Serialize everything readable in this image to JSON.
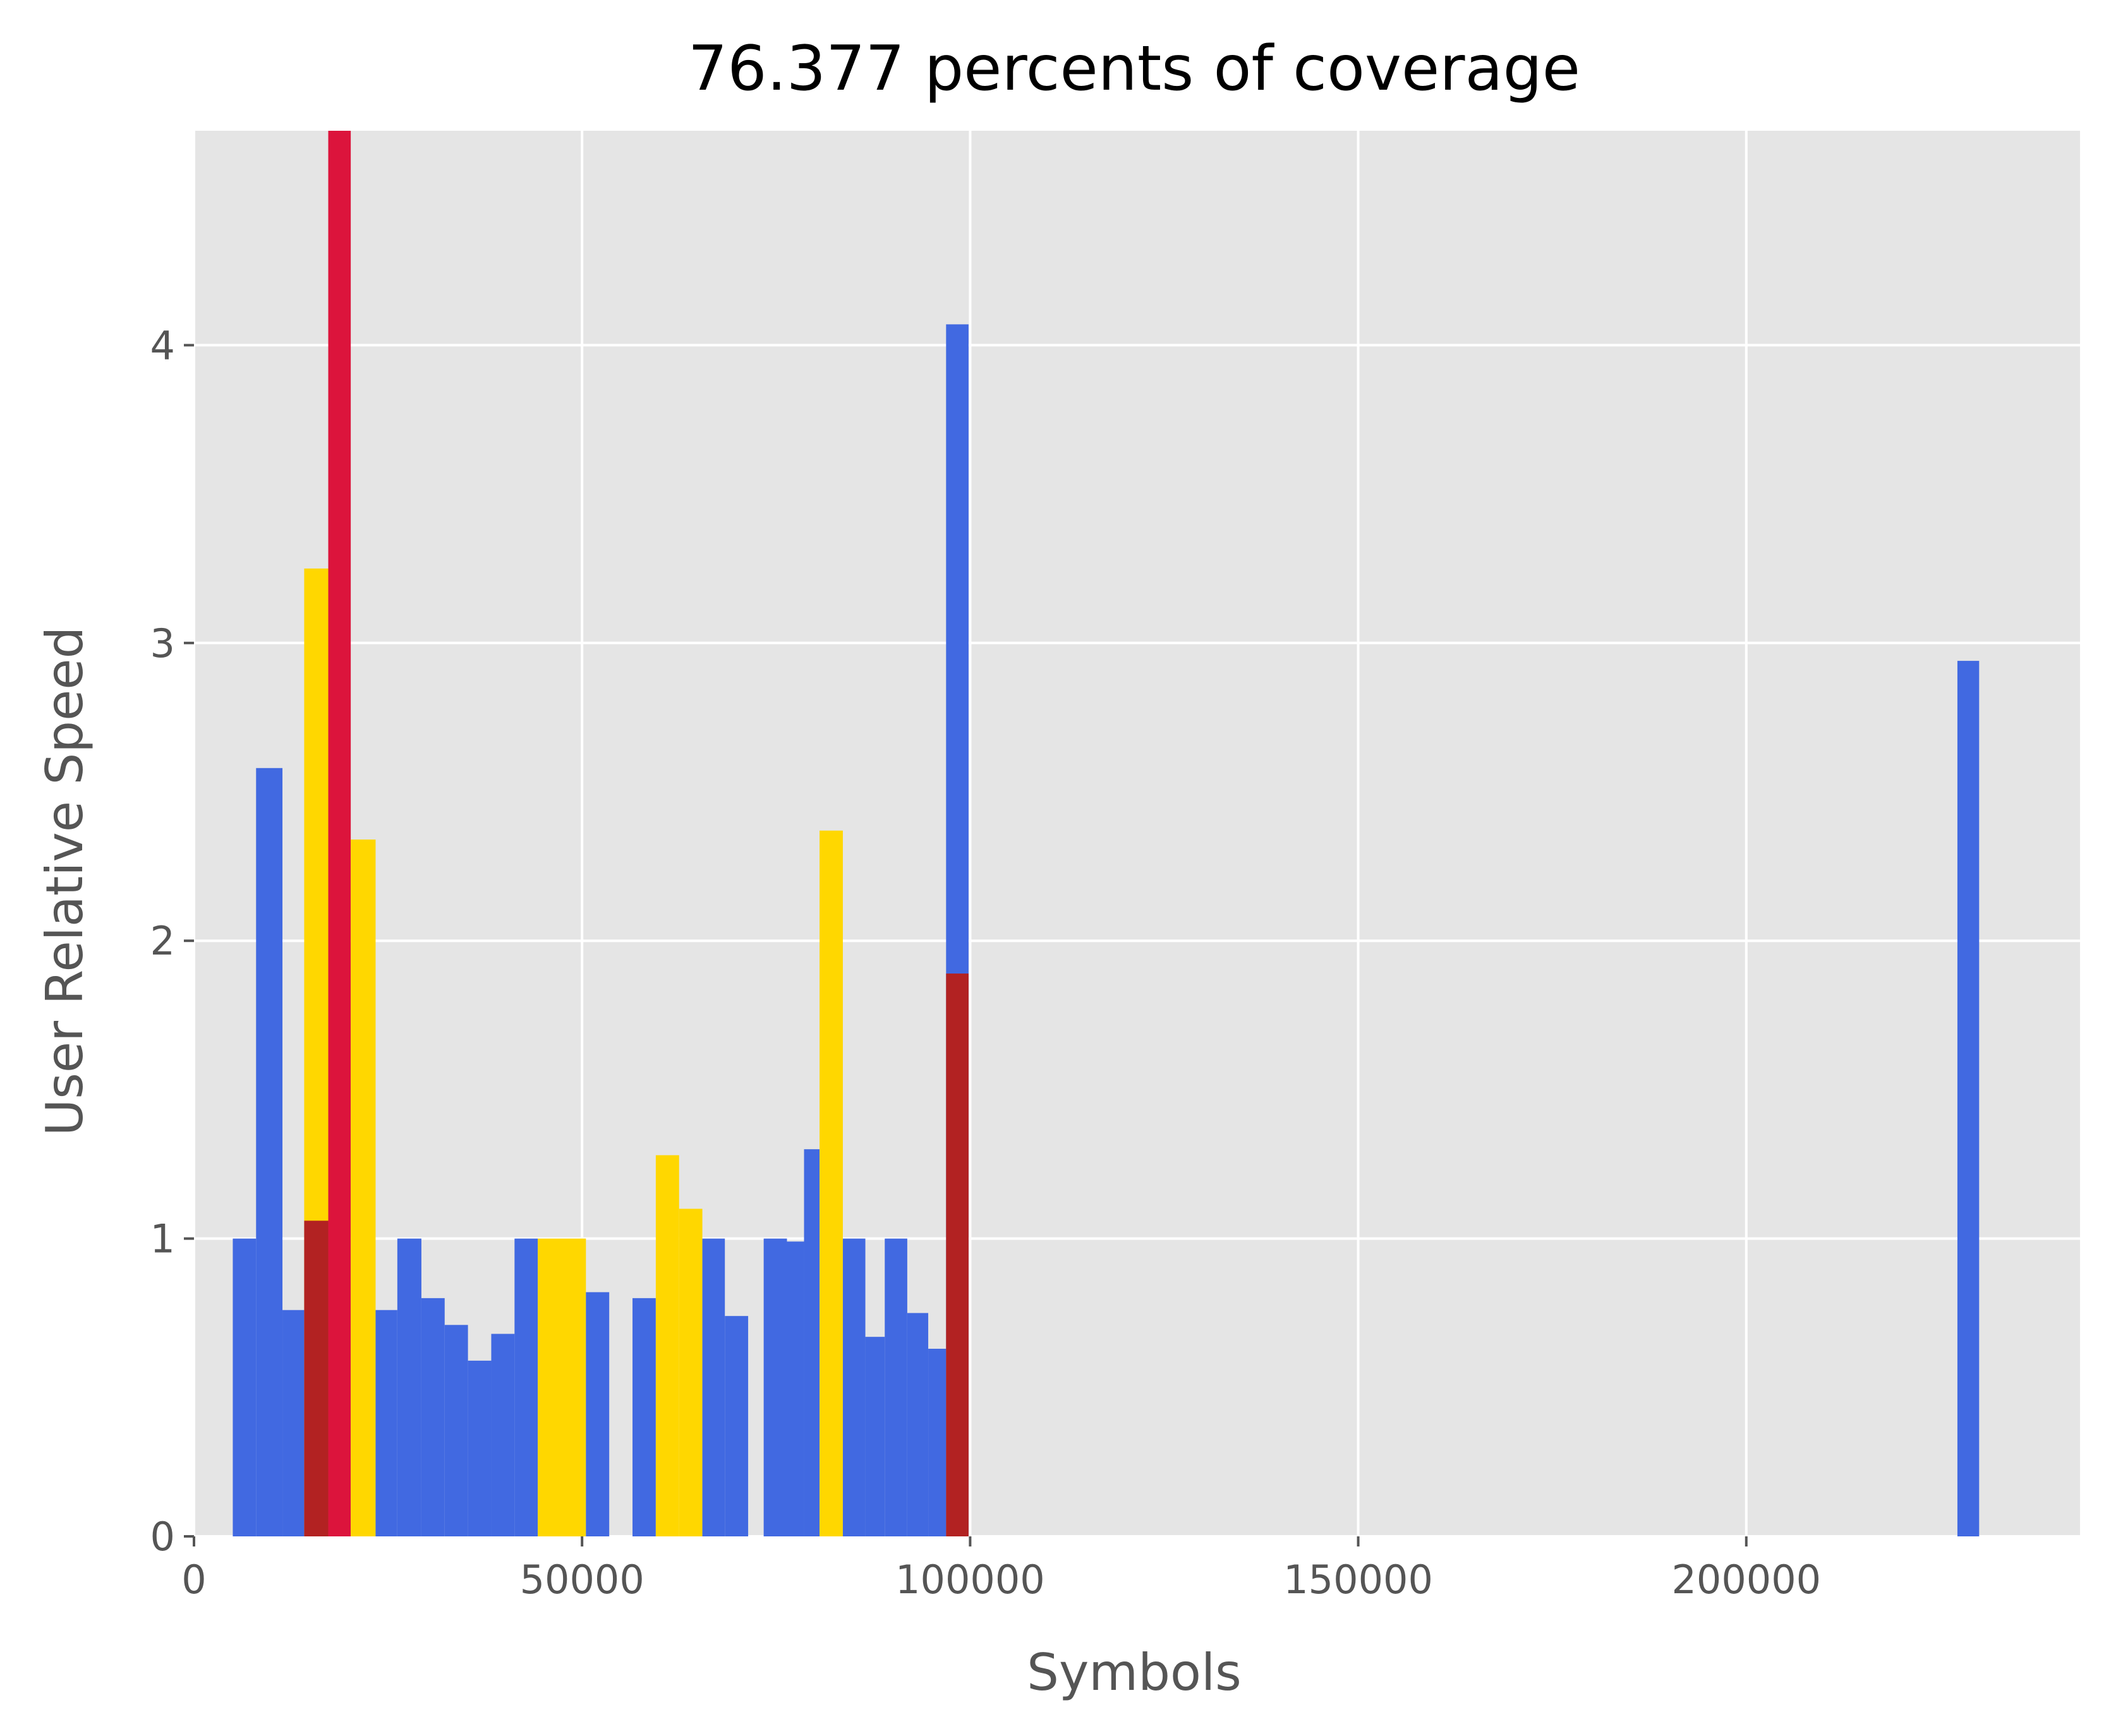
{
  "chart_data": {
    "type": "bar",
    "title": "76.377 percents of coverage",
    "xlabel": "Symbols",
    "ylabel": "User Relative Speed",
    "xlim": [
      0,
      243000
    ],
    "ylim": [
      0,
      4.72
    ],
    "xticks": [
      0,
      50000,
      100000,
      150000,
      200000
    ],
    "yticks": [
      0,
      1,
      2,
      3,
      4
    ],
    "grid": true,
    "colors": {
      "background": "#e5e5e5",
      "grid": "#ffffff",
      "blue": "#4169e1",
      "gold": "#ffd700",
      "crimson": "#dc143c",
      "darkred": "#b22222"
    },
    "bars": [
      {
        "x0": 5000,
        "x1": 8000,
        "y": 1.0,
        "color": "blue"
      },
      {
        "x0": 8000,
        "x1": 11400,
        "y": 2.58,
        "color": "blue"
      },
      {
        "x0": 11400,
        "x1": 14200,
        "y": 0.76,
        "color": "blue"
      },
      {
        "x0": 14200,
        "x1": 17300,
        "y": 3.25,
        "color": "gold"
      },
      {
        "x0": 14200,
        "x1": 17300,
        "y": 1.06,
        "color": "darkred"
      },
      {
        "x0": 17300,
        "x1": 20200,
        "y": 4.72,
        "color": "crimson"
      },
      {
        "x0": 20200,
        "x1": 23400,
        "y": 2.34,
        "color": "gold"
      },
      {
        "x0": 23400,
        "x1": 26200,
        "y": 0.76,
        "color": "blue"
      },
      {
        "x0": 26200,
        "x1": 29300,
        "y": 1.0,
        "color": "blue"
      },
      {
        "x0": 29300,
        "x1": 32300,
        "y": 0.8,
        "color": "blue"
      },
      {
        "x0": 32300,
        "x1": 35300,
        "y": 0.71,
        "color": "blue"
      },
      {
        "x0": 35300,
        "x1": 38300,
        "y": 0.59,
        "color": "blue"
      },
      {
        "x0": 38300,
        "x1": 41300,
        "y": 0.68,
        "color": "blue"
      },
      {
        "x0": 41300,
        "x1": 44300,
        "y": 1.0,
        "color": "blue"
      },
      {
        "x0": 44300,
        "x1": 50500,
        "y": 1.0,
        "color": "gold"
      },
      {
        "x0": 50500,
        "x1": 53500,
        "y": 0.82,
        "color": "blue"
      },
      {
        "x0": 56500,
        "x1": 59500,
        "y": 0.8,
        "color": "blue"
      },
      {
        "x0": 59500,
        "x1": 62500,
        "y": 1.28,
        "color": "gold"
      },
      {
        "x0": 62500,
        "x1": 65500,
        "y": 1.1,
        "color": "gold"
      },
      {
        "x0": 65500,
        "x1": 68400,
        "y": 1.0,
        "color": "blue"
      },
      {
        "x0": 68400,
        "x1": 71400,
        "y": 0.74,
        "color": "blue"
      },
      {
        "x0": 73400,
        "x1": 76400,
        "y": 1.0,
        "color": "blue"
      },
      {
        "x0": 76400,
        "x1": 78600,
        "y": 0.99,
        "color": "blue"
      },
      {
        "x0": 78600,
        "x1": 80600,
        "y": 1.3,
        "color": "blue"
      },
      {
        "x0": 80600,
        "x1": 83600,
        "y": 2.37,
        "color": "gold"
      },
      {
        "x0": 83600,
        "x1": 86500,
        "y": 1.0,
        "color": "blue"
      },
      {
        "x0": 86500,
        "x1": 89000,
        "y": 0.67,
        "color": "blue"
      },
      {
        "x0": 89000,
        "x1": 91900,
        "y": 1.0,
        "color": "blue"
      },
      {
        "x0": 91900,
        "x1": 94600,
        "y": 0.75,
        "color": "blue"
      },
      {
        "x0": 94600,
        "x1": 96900,
        "y": 0.63,
        "color": "blue"
      },
      {
        "x0": 96900,
        "x1": 99800,
        "y": 4.07,
        "color": "blue"
      },
      {
        "x0": 96900,
        "x1": 99800,
        "y": 1.89,
        "color": "darkred"
      },
      {
        "x0": 227200,
        "x1": 230000,
        "y": 2.94,
        "color": "blue"
      }
    ]
  }
}
